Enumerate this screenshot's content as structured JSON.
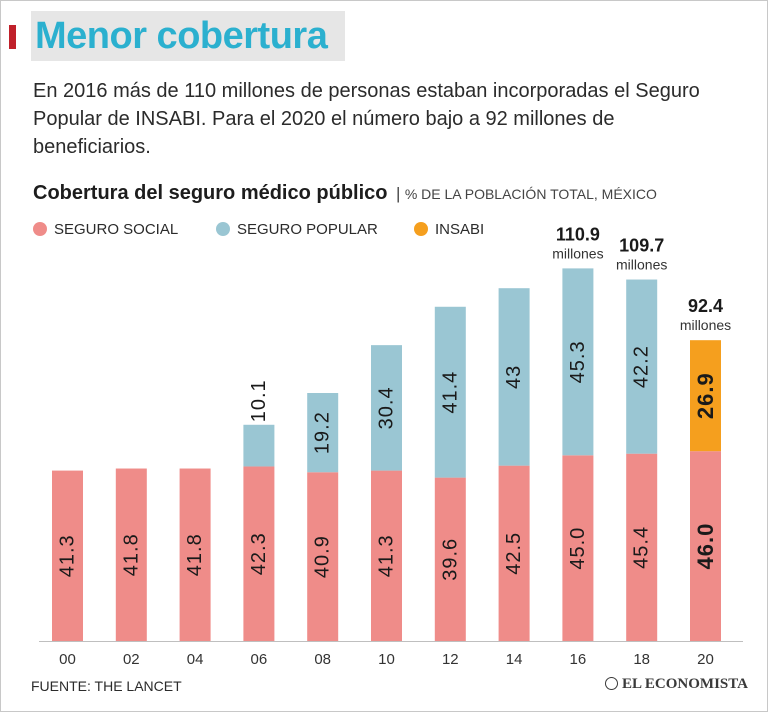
{
  "header": {
    "title": "Menor cobertura",
    "intro": "En 2016 más de 110 millones de personas estaban incorporadas el Seguro Popular de INSABI. Para el 2020 el número bajo a 92 millones de beneficiarios."
  },
  "chart_data": {
    "type": "bar",
    "stacked": true,
    "title": "Cobertura del seguro médico público",
    "subtitle": "% DE LA POBLACIÓN TOTAL, MÉXICO",
    "categories": [
      "00",
      "02",
      "04",
      "06",
      "08",
      "10",
      "12",
      "14",
      "16",
      "18",
      "20"
    ],
    "series": [
      {
        "name": "SEGURO SOCIAL",
        "color": "#ef8c89",
        "values": [
          41.3,
          41.8,
          41.8,
          42.3,
          40.9,
          41.3,
          39.6,
          42.5,
          45.0,
          45.4,
          46.0
        ],
        "labels": [
          "41.3",
          "41.8",
          "41.8",
          "42.3",
          "40.9",
          "41.3",
          "39.6",
          "42.5",
          "45.0",
          "45.4",
          "46.0"
        ]
      },
      {
        "name": "SEGURO POPULAR",
        "color": "#9ac6d3",
        "values": [
          0,
          0,
          0,
          10.1,
          19.2,
          30.4,
          41.4,
          43,
          45.3,
          42.2,
          0
        ],
        "labels": [
          "",
          "",
          "",
          "10.1",
          "19.2",
          "30.4",
          "41.4",
          "43",
          "45.3",
          "42.2",
          ""
        ]
      },
      {
        "name": "INSABI",
        "color": "#f59f1e",
        "values": [
          0,
          0,
          0,
          0,
          0,
          0,
          0,
          0,
          0,
          0,
          26.9
        ],
        "labels": [
          "",
          "",
          "",
          "",
          "",
          "",
          "",
          "",
          "",
          "",
          "26.9"
        ]
      }
    ],
    "totals": [
      {
        "index": 8,
        "value": "110.9",
        "unit": "millones"
      },
      {
        "index": 9,
        "value": "109.7",
        "unit": "millones"
      },
      {
        "index": 10,
        "value": "92.4",
        "unit": "millones"
      }
    ],
    "ylim": [
      0,
      95
    ],
    "xlabel": "",
    "ylabel": "",
    "legend": "top-left"
  },
  "footer": {
    "source": "FUENTE: THE LANCET",
    "brand": "EL ECONOMISTA"
  }
}
